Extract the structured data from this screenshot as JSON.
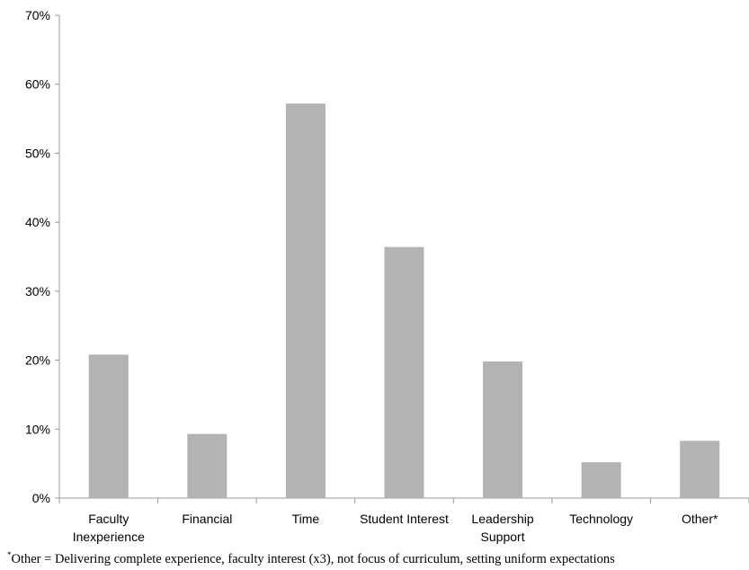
{
  "chart_data": {
    "type": "bar",
    "categories": [
      [
        "Faculty",
        "Inexperience"
      ],
      [
        "Financial"
      ],
      [
        "Time"
      ],
      [
        "Student Interest"
      ],
      [
        "Leadership",
        "Support"
      ],
      [
        "Technology"
      ],
      [
        "Other*"
      ]
    ],
    "values": [
      20.8,
      9.3,
      57.2,
      36.4,
      19.8,
      5.2,
      8.3
    ],
    "unit": "%",
    "ylim": [
      0,
      70
    ],
    "yticks": [
      "0%",
      "10%",
      "20%",
      "30%",
      "40%",
      "50%",
      "60%",
      "70%"
    ],
    "bar_color": "#b3b3b3",
    "axis_color": "#999999",
    "grid": false,
    "legend": "none"
  },
  "footnote": {
    "marker": "*",
    "text": "Other = Delivering complete experience, faculty interest (x3), not focus of curriculum, setting uniform expectations"
  }
}
